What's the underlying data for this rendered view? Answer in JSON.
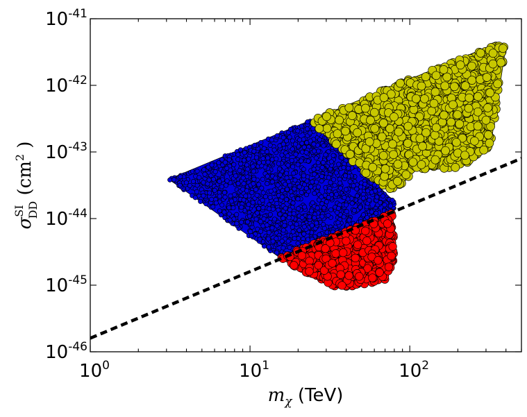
{
  "chart_data": {
    "type": "scatter",
    "xscale": "log",
    "yscale": "log",
    "xlim": [
      1,
      500
    ],
    "ylim": [
      1e-46,
      1e-41
    ],
    "xlabel": {
      "symbol": "m",
      "subscript": "χ",
      "unit": " (TeV)"
    },
    "ylabel": {
      "symbol": "σ",
      "superscript": "SI",
      "subscript": "DD",
      "unit_open": " (cm",
      "unit_exp": "2",
      "unit_close": " )"
    },
    "x_ticks": [
      {
        "value": 1,
        "base": "10",
        "exp": "0"
      },
      {
        "value": 10,
        "base": "10",
        "exp": "1"
      },
      {
        "value": 100,
        "base": "10",
        "exp": "2"
      }
    ],
    "y_ticks": [
      {
        "value": 1e-46,
        "base": "10",
        "exp": "-46"
      },
      {
        "value": 1e-45,
        "base": "10",
        "exp": "-45"
      },
      {
        "value": 1e-44,
        "base": "10",
        "exp": "-44"
      },
      {
        "value": 1e-43,
        "base": "10",
        "exp": "-43"
      },
      {
        "value": 1e-42,
        "base": "10",
        "exp": "-42"
      },
      {
        "value": 1e-41,
        "base": "10",
        "exp": "-41"
      }
    ],
    "grid": false,
    "series": [
      {
        "color": "#0000dd",
        "marker": "circle-small",
        "region_outline": [
          [
            3.1,
            3.9e-44
          ],
          [
            24,
            3e-43
          ],
          [
            80,
            1.8e-44
          ],
          [
            80,
            1.2e-44
          ],
          [
            60,
            8e-45
          ],
          [
            15,
            2.7e-45
          ]
        ]
      },
      {
        "color": "#ff0000",
        "marker": "circle",
        "region_outline": [
          [
            15,
            2.6e-45
          ],
          [
            78,
            1.2e-44
          ],
          [
            80,
            2.5e-45
          ],
          [
            70,
            1.2e-45
          ],
          [
            45,
            9.2e-46
          ],
          [
            33,
            9.8e-46
          ],
          [
            22,
            1.6e-45
          ]
        ]
      },
      {
        "color": "#c8c800",
        "marker": "circle",
        "region_outline": [
          [
            24,
            3e-43
          ],
          [
            360,
            4.4e-42
          ],
          [
            400,
            3.9e-42
          ],
          [
            320,
            1.2e-43
          ],
          [
            200,
            5.6e-44
          ],
          [
            110,
            5.4e-44
          ],
          [
            80,
            2.6e-44
          ],
          [
            60,
            3.5e-44
          ],
          [
            24,
            2.8e-43
          ]
        ]
      }
    ],
    "lines": [
      {
        "style": "dashed",
        "color": "#000000",
        "points": [
          [
            1,
            1.6e-46
          ],
          [
            500,
            8e-44
          ]
        ]
      }
    ]
  }
}
